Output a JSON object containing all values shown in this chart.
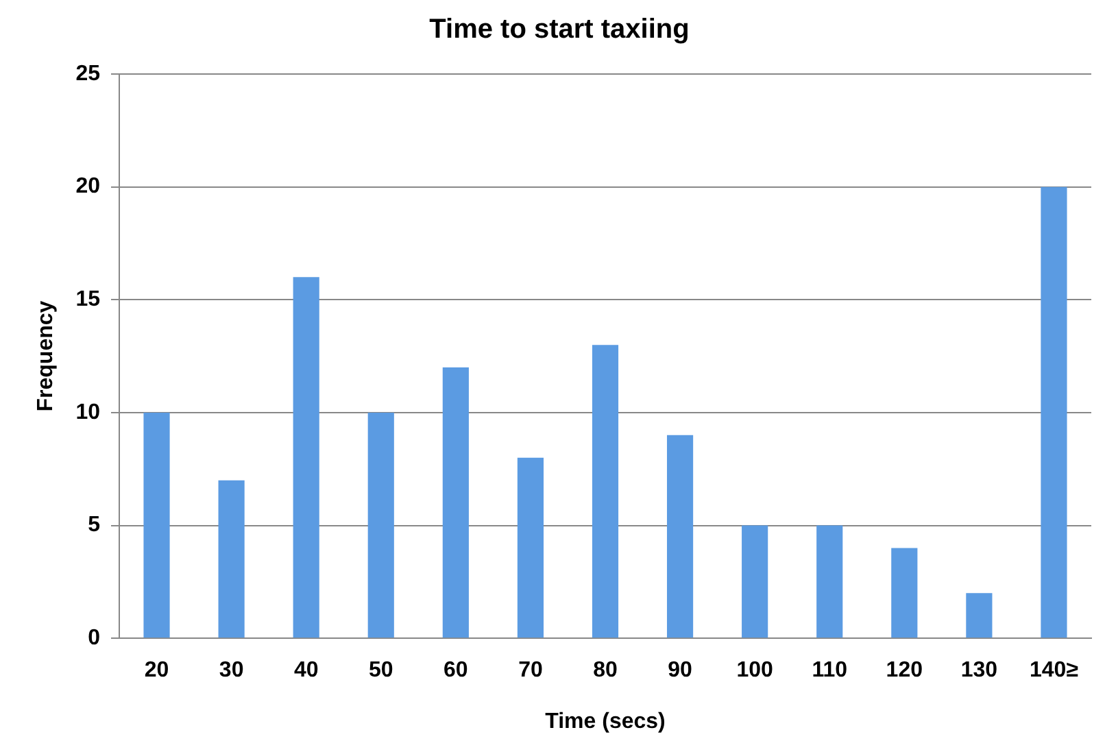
{
  "chart_data": {
    "type": "bar",
    "title": "Time to start taxiing",
    "xlabel": "Time (secs)",
    "ylabel": "Frequency",
    "categories": [
      "20",
      "30",
      "40",
      "50",
      "60",
      "70",
      "80",
      "90",
      "100",
      "110",
      "120",
      "130",
      "140≥"
    ],
    "values": [
      10,
      7,
      16,
      10,
      12,
      8,
      13,
      9,
      5,
      5,
      4,
      2,
      20
    ],
    "color": "#5b9be2",
    "ylim": [
      0,
      25
    ],
    "yticks": [
      0,
      5,
      10,
      15,
      20,
      25
    ],
    "grid": "y",
    "legend": false
  }
}
